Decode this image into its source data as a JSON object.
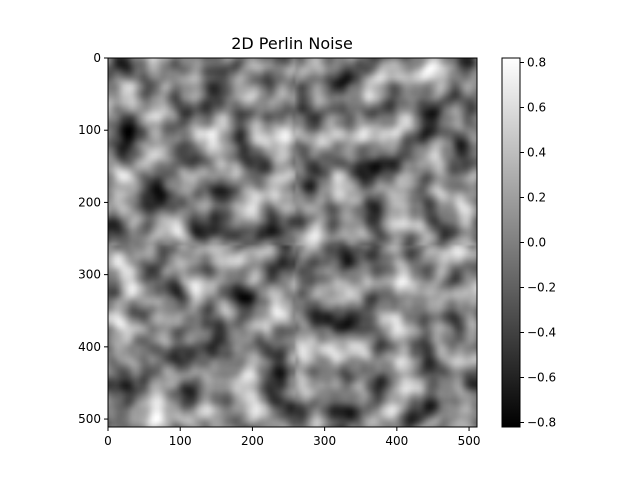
{
  "chart_data": {
    "type": "heatmap",
    "title": "2D Perlin Noise",
    "xlabel": "",
    "ylabel": "",
    "colormap": "gray",
    "colormap_colors": {
      "low": "#000000",
      "high": "#ffffff"
    },
    "xlim": [
      0,
      511
    ],
    "ylim": [
      511,
      0
    ],
    "x_ticks": [
      0,
      100,
      200,
      300,
      400,
      500
    ],
    "x_tick_labels": [
      "0",
      "100",
      "200",
      "300",
      "400",
      "500"
    ],
    "y_ticks": [
      0,
      100,
      200,
      300,
      400,
      500
    ],
    "y_tick_labels": [
      "0",
      "100",
      "200",
      "300",
      "400",
      "500"
    ],
    "value_range": [
      -0.82,
      0.82
    ],
    "colorbar_ticks": [
      0.8,
      0.6,
      0.4,
      0.2,
      0.0,
      -0.2,
      -0.4,
      -0.6,
      -0.8
    ],
    "colorbar_tick_labels": [
      "0.8",
      "0.6",
      "0.4",
      "0.2",
      "0.0",
      "−0.2",
      "−0.4",
      "−0.6",
      "−0.8"
    ],
    "grid": false,
    "colorbar_position": "right"
  }
}
